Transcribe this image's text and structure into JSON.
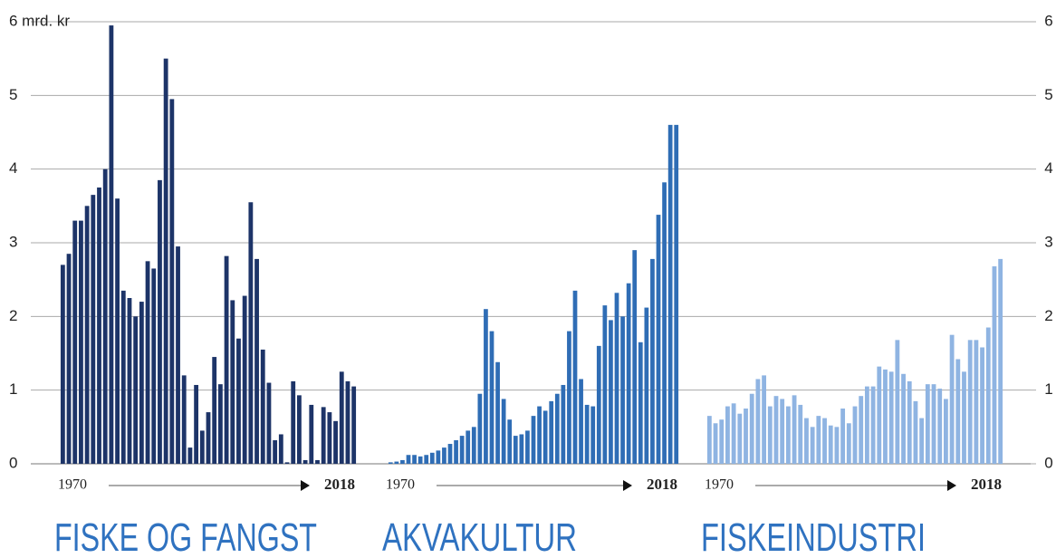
{
  "chart_data": [
    {
      "type": "bar",
      "title": "FISKE OG FANGST",
      "color": "#1d3468",
      "categories": [
        "1970",
        null,
        null,
        null,
        null,
        null,
        null,
        null,
        null,
        null,
        null,
        null,
        null,
        null,
        null,
        null,
        null,
        null,
        null,
        null,
        null,
        null,
        null,
        null,
        null,
        null,
        null,
        null,
        null,
        null,
        null,
        null,
        null,
        null,
        null,
        null,
        null,
        null,
        null,
        null,
        null,
        null,
        null,
        null,
        null,
        null,
        null,
        null,
        "2018"
      ],
      "values": [
        2.7,
        2.85,
        3.3,
        3.3,
        3.5,
        3.65,
        3.75,
        4.0,
        5.95,
        3.6,
        2.35,
        2.25,
        2.0,
        2.2,
        2.75,
        2.65,
        3.85,
        5.5,
        4.95,
        2.95,
        1.2,
        0.22,
        1.07,
        0.45,
        0.7,
        1.45,
        1.08,
        2.82,
        2.22,
        1.7,
        2.28,
        3.55,
        2.78,
        1.55,
        1.1,
        0.32,
        0.4,
        0.02,
        1.12,
        0.93,
        0.05,
        0.8,
        0.05,
        0.77,
        0.7,
        0.58,
        1.25,
        1.12,
        1.05
      ],
      "ylim": [
        0,
        6
      ],
      "yticks": [
        0,
        1,
        2,
        3,
        4,
        5,
        {
          "value": 6,
          "label": "6 mrd. kr"
        }
      ],
      "grid": true
    },
    {
      "type": "bar",
      "title": "AKVAKULTUR",
      "color": "#2f6db5",
      "categories": [
        "1970",
        null,
        null,
        null,
        null,
        null,
        null,
        null,
        null,
        null,
        null,
        null,
        null,
        null,
        null,
        null,
        null,
        null,
        null,
        null,
        null,
        null,
        null,
        null,
        null,
        null,
        null,
        null,
        null,
        null,
        null,
        null,
        null,
        null,
        null,
        null,
        null,
        null,
        null,
        null,
        null,
        null,
        null,
        null,
        null,
        null,
        null,
        null,
        "2018"
      ],
      "values": [
        0.02,
        0.03,
        0.05,
        0.12,
        0.12,
        0.1,
        0.12,
        0.15,
        0.18,
        0.22,
        0.27,
        0.32,
        0.38,
        0.45,
        0.5,
        0.95,
        2.1,
        1.8,
        1.38,
        0.88,
        0.6,
        0.38,
        0.4,
        0.45,
        0.65,
        0.78,
        0.72,
        0.85,
        0.95,
        1.07,
        1.8,
        2.35,
        1.15,
        0.8,
        0.78,
        1.6,
        2.15,
        1.95,
        2.32,
        2.0,
        2.45,
        2.9,
        1.65,
        2.12,
        2.78,
        3.38,
        3.82,
        4.6,
        4.6
      ],
      "ylim": [
        0,
        6
      ]
    },
    {
      "type": "bar",
      "title": "FISKEINDUSTRI",
      "color": "#8fb4e2",
      "categories": [
        "1970",
        null,
        null,
        null,
        null,
        null,
        null,
        null,
        null,
        null,
        null,
        null,
        null,
        null,
        null,
        null,
        null,
        null,
        null,
        null,
        null,
        null,
        null,
        null,
        null,
        null,
        null,
        null,
        null,
        null,
        null,
        null,
        null,
        null,
        null,
        null,
        null,
        null,
        null,
        null,
        null,
        null,
        null,
        null,
        null,
        null,
        null,
        null,
        "2018"
      ],
      "values": [
        0.65,
        0.55,
        0.6,
        0.78,
        0.82,
        0.68,
        0.75,
        0.95,
        1.15,
        1.2,
        0.78,
        0.92,
        0.88,
        0.78,
        0.93,
        0.8,
        0.62,
        0.5,
        0.65,
        0.62,
        0.52,
        0.5,
        0.75,
        0.55,
        0.78,
        0.92,
        1.05,
        1.05,
        1.32,
        1.28,
        1.25,
        1.68,
        1.22,
        1.12,
        0.85,
        0.62,
        1.08,
        1.08,
        1.02,
        0.88,
        1.75,
        1.42,
        1.25,
        1.68,
        1.68,
        1.58,
        1.85,
        2.68,
        2.78
      ],
      "ylim": [
        0,
        6
      ],
      "y2lim": [
        0,
        6
      ],
      "y2ticks": [
        0,
        1,
        2,
        3,
        4,
        5,
        6
      ]
    }
  ]
}
